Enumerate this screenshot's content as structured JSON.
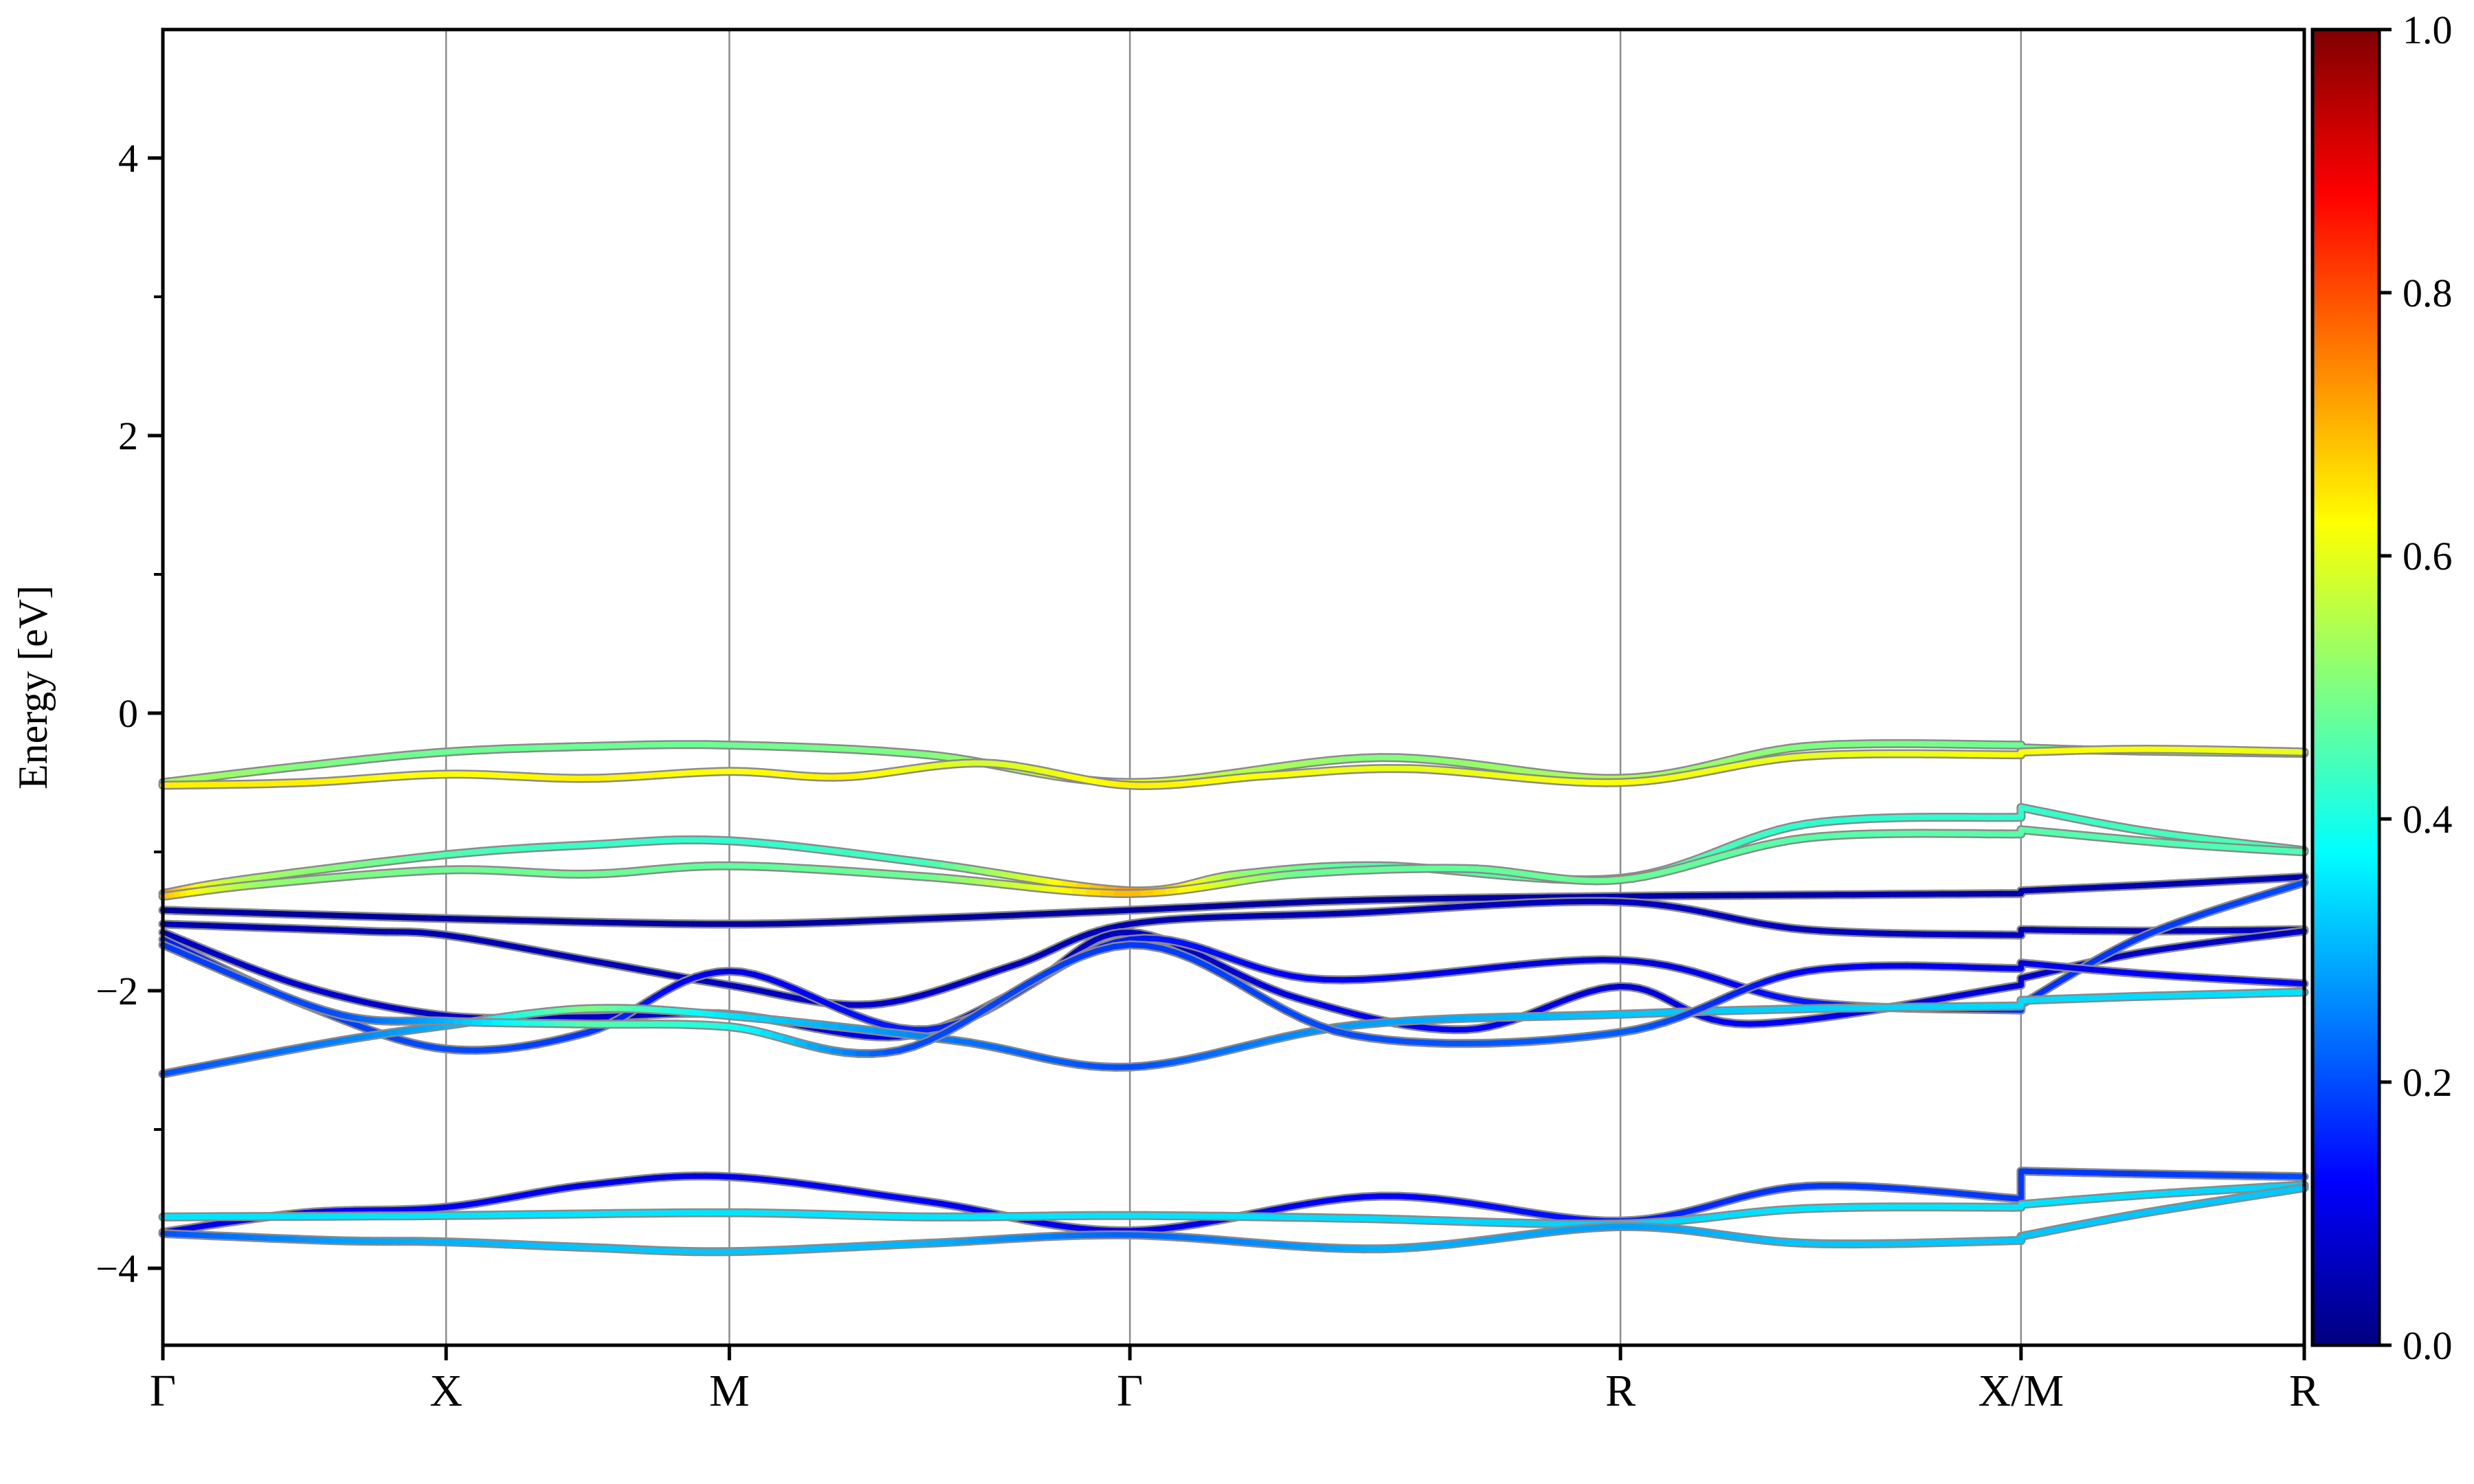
{
  "figure": {
    "background": "#ffffff",
    "gridline_color": "#8c8c8c",
    "spine_color": "#000000",
    "band_edge_color": "#8a8a8a"
  },
  "chart_data": {
    "type": "line",
    "subtype": "band-structure",
    "title": "",
    "xlabel": "",
    "ylabel": "Energy [eV]",
    "ylim": [
      -4.55,
      4.93
    ],
    "grid": "vertical-at-high-symmetry-points",
    "yticks_major": [
      {
        "label": "4",
        "value": 4
      },
      {
        "label": "2",
        "value": 2
      },
      {
        "label": "0",
        "value": 0
      },
      {
        "label": "−2",
        "value": -2
      },
      {
        "label": "−4",
        "value": -4
      }
    ],
    "yticks_minor": [
      3,
      1,
      -1,
      -3
    ],
    "xticks": [
      {
        "label": "Γ",
        "k": 0.0
      },
      {
        "label": "X",
        "k": 0.5
      },
      {
        "label": "M",
        "k": 1.0
      },
      {
        "label": "Γ",
        "k": 1.7071
      },
      {
        "label": "R",
        "k": 2.5731
      },
      {
        "label": "X/M",
        "k": 3.2802
      },
      {
        "label": "R",
        "k": 3.7802
      }
    ],
    "kmax": 3.7802,
    "colorbar": {
      "cmap": "jet",
      "range": [
        0.0,
        1.0
      ],
      "ticks": [
        {
          "label": "0.0",
          "value": 0.0
        },
        {
          "label": "0.2",
          "value": 0.2
        },
        {
          "label": "0.4",
          "value": 0.4
        },
        {
          "label": "0.6",
          "value": 0.6
        },
        {
          "label": "0.8",
          "value": 0.8
        },
        {
          "label": "1.0",
          "value": 1.0
        }
      ]
    },
    "bands": [
      {
        "name": "valence-top-upper",
        "points": [
          [
            0,
            -0.5,
            0.55
          ],
          [
            0.25,
            -0.38,
            0.5
          ],
          [
            0.5,
            -0.28,
            0.48
          ],
          [
            0.75,
            -0.24,
            0.48
          ],
          [
            1.0,
            -0.23,
            0.48
          ],
          [
            1.35,
            -0.3,
            0.5
          ],
          [
            1.7071,
            -0.5,
            0.6
          ],
          [
            2.15,
            -0.32,
            0.5
          ],
          [
            2.5731,
            -0.47,
            0.55
          ],
          [
            2.9,
            -0.24,
            0.5
          ],
          [
            3.2802,
            -0.23,
            0.48
          ],
          [
            3.2802,
            -0.25,
            0.48
          ],
          [
            3.45,
            -0.27,
            0.5
          ],
          [
            3.7802,
            -0.29,
            0.55
          ]
        ]
      },
      {
        "name": "valence-top-lower",
        "points": [
          [
            0,
            -0.52,
            0.64
          ],
          [
            0.25,
            -0.5,
            0.64
          ],
          [
            0.5,
            -0.44,
            0.62
          ],
          [
            0.75,
            -0.47,
            0.64
          ],
          [
            1.0,
            -0.42,
            0.62
          ],
          [
            1.2,
            -0.46,
            0.64
          ],
          [
            1.45,
            -0.36,
            0.58
          ],
          [
            1.7071,
            -0.52,
            0.64
          ],
          [
            1.95,
            -0.45,
            0.62
          ],
          [
            2.2,
            -0.4,
            0.6
          ],
          [
            2.5731,
            -0.5,
            0.62
          ],
          [
            2.9,
            -0.31,
            0.6
          ],
          [
            3.2802,
            -0.3,
            0.62
          ],
          [
            3.2802,
            -0.28,
            0.62
          ],
          [
            3.5,
            -0.26,
            0.62
          ],
          [
            3.7802,
            -0.28,
            0.6
          ]
        ]
      },
      {
        "name": "band-2nd-upper",
        "points": [
          [
            0,
            -1.3,
            0.74
          ],
          [
            0.14,
            -1.2,
            0.55
          ],
          [
            0.5,
            -1.02,
            0.45
          ],
          [
            0.75,
            -0.95,
            0.43
          ],
          [
            1.0,
            -0.92,
            0.42
          ],
          [
            1.35,
            -1.08,
            0.44
          ],
          [
            1.7071,
            -1.28,
            0.74
          ],
          [
            1.9,
            -1.16,
            0.52
          ],
          [
            2.15,
            -1.1,
            0.45
          ],
          [
            2.5731,
            -1.19,
            0.47
          ],
          [
            2.9,
            -0.8,
            0.42
          ],
          [
            3.2802,
            -0.75,
            0.42
          ],
          [
            3.2802,
            -0.68,
            0.42
          ],
          [
            3.5,
            -0.85,
            0.44
          ],
          [
            3.7802,
            -0.99,
            0.45
          ]
        ]
      },
      {
        "name": "band-2nd-lower",
        "points": [
          [
            0,
            -1.32,
            0.7
          ],
          [
            0.18,
            -1.23,
            0.52
          ],
          [
            0.5,
            -1.13,
            0.48
          ],
          [
            0.75,
            -1.16,
            0.48
          ],
          [
            1.0,
            -1.1,
            0.47
          ],
          [
            1.35,
            -1.18,
            0.48
          ],
          [
            1.7071,
            -1.3,
            0.7
          ],
          [
            2.0,
            -1.16,
            0.48
          ],
          [
            2.3,
            -1.12,
            0.47
          ],
          [
            2.5731,
            -1.2,
            0.48
          ],
          [
            2.9,
            -0.9,
            0.46
          ],
          [
            3.2802,
            -0.87,
            0.46
          ],
          [
            3.2802,
            -0.84,
            0.46
          ],
          [
            3.55,
            -0.94,
            0.45
          ],
          [
            3.7802,
            -1.0,
            0.45
          ]
        ]
      },
      {
        "name": "navy-flat-a",
        "points": [
          [
            0,
            -1.42,
            0.03
          ],
          [
            0.5,
            -1.48,
            0.03
          ],
          [
            1.0,
            -1.52,
            0.03
          ],
          [
            1.35,
            -1.48,
            0.03
          ],
          [
            1.7071,
            -1.42,
            0.03
          ],
          [
            2.1,
            -1.35,
            0.03
          ],
          [
            2.5731,
            -1.32,
            0.04
          ],
          [
            2.9,
            -1.31,
            0.04
          ],
          [
            3.2802,
            -1.3,
            0.04
          ],
          [
            3.2802,
            -1.28,
            0.04
          ],
          [
            3.5,
            -1.24,
            0.05
          ],
          [
            3.7802,
            -1.18,
            0.05
          ]
        ]
      },
      {
        "name": "navy-flat-b",
        "points": [
          [
            0,
            -1.52,
            0.05
          ],
          [
            0.35,
            -1.57,
            0.05
          ],
          [
            0.5,
            -1.6,
            0.05
          ],
          [
            0.75,
            -1.78,
            0.05
          ],
          [
            1.0,
            -1.96,
            0.06
          ],
          [
            1.25,
            -2.1,
            0.07
          ],
          [
            1.5,
            -1.82,
            0.06
          ],
          [
            1.7071,
            -1.52,
            0.05
          ],
          [
            2.1,
            -1.44,
            0.05
          ],
          [
            2.5731,
            -1.36,
            0.06
          ],
          [
            2.9,
            -1.56,
            0.06
          ],
          [
            3.2802,
            -1.6,
            0.06
          ],
          [
            3.2802,
            -1.56,
            0.06
          ],
          [
            3.5,
            -1.57,
            0.06
          ],
          [
            3.7802,
            -1.56,
            0.06
          ]
        ]
      },
      {
        "name": "navy-descender",
        "points": [
          [
            0,
            -1.58,
            0.06
          ],
          [
            0.25,
            -1.97,
            0.08
          ],
          [
            0.5,
            -2.18,
            0.07
          ],
          [
            0.75,
            -2.19,
            0.07
          ],
          [
            1.0,
            -2.17,
            0.07
          ],
          [
            1.3,
            -2.33,
            0.1
          ],
          [
            1.52,
            -1.98,
            0.07
          ],
          [
            1.7071,
            -1.58,
            0.06
          ],
          [
            2.0,
            -2.05,
            0.1
          ],
          [
            2.3,
            -2.28,
            0.12
          ],
          [
            2.5731,
            -1.97,
            0.08
          ],
          [
            2.8,
            -2.24,
            0.12
          ],
          [
            3.2802,
            -1.96,
            0.08
          ],
          [
            3.2802,
            -1.91,
            0.08
          ],
          [
            3.5,
            -1.72,
            0.07
          ],
          [
            3.7802,
            -1.57,
            0.06
          ]
        ]
      },
      {
        "name": "blue-descender",
        "points": [
          [
            0,
            -1.63,
            0.15
          ],
          [
            0.25,
            -2.1,
            0.18
          ],
          [
            0.5,
            -2.42,
            0.2
          ],
          [
            0.75,
            -2.3,
            0.18
          ],
          [
            1.0,
            -1.86,
            0.1
          ],
          [
            1.35,
            -2.28,
            0.16
          ],
          [
            1.7071,
            -1.63,
            0.15
          ],
          [
            2.05,
            -1.92,
            0.12
          ],
          [
            2.5731,
            -1.78,
            0.08
          ],
          [
            2.9,
            -2.08,
            0.15
          ],
          [
            3.2802,
            -2.14,
            0.17
          ],
          [
            3.2802,
            -2.1,
            0.17
          ],
          [
            3.5,
            -1.6,
            0.18
          ],
          [
            3.7802,
            -1.22,
            0.2
          ]
        ]
      },
      {
        "name": "cyan-dip-band",
        "points": [
          [
            0,
            -2.6,
            0.2
          ],
          [
            0.3,
            -2.37,
            0.25
          ],
          [
            0.5,
            -2.25,
            0.3
          ],
          [
            0.75,
            -2.13,
            0.5
          ],
          [
            1.0,
            -2.18,
            0.35
          ],
          [
            1.4,
            -2.36,
            0.24
          ],
          [
            1.7071,
            -2.55,
            0.2
          ],
          [
            2.1,
            -2.25,
            0.28
          ],
          [
            2.5731,
            -2.17,
            0.32
          ],
          [
            2.9,
            -2.13,
            0.33
          ],
          [
            3.2802,
            -2.11,
            0.34
          ],
          [
            3.2802,
            -2.07,
            0.34
          ],
          [
            3.5,
            -2.04,
            0.34
          ],
          [
            3.7802,
            -2.01,
            0.35
          ]
        ]
      },
      {
        "name": "blue-low-crosser",
        "points": [
          [
            0,
            -1.67,
            0.18
          ],
          [
            0.3,
            -2.16,
            0.2
          ],
          [
            0.5,
            -2.22,
            0.3
          ],
          [
            0.75,
            -2.24,
            0.46
          ],
          [
            1.0,
            -2.26,
            0.4
          ],
          [
            1.3,
            -2.43,
            0.2
          ],
          [
            1.7071,
            -1.67,
            0.18
          ],
          [
            2.1,
            -2.32,
            0.2
          ],
          [
            2.5731,
            -2.3,
            0.22
          ],
          [
            2.9,
            -1.86,
            0.12
          ],
          [
            3.2802,
            -1.84,
            0.1
          ],
          [
            3.2802,
            -1.8,
            0.1
          ],
          [
            3.5,
            -1.88,
            0.12
          ],
          [
            3.7802,
            -1.95,
            0.12
          ]
        ]
      },
      {
        "name": "deep-navy-arc",
        "points": [
          [
            0,
            -3.74,
            0.1
          ],
          [
            0.25,
            -3.6,
            0.12
          ],
          [
            0.5,
            -3.56,
            0.12
          ],
          [
            0.75,
            -3.4,
            0.1
          ],
          [
            1.0,
            -3.34,
            0.1
          ],
          [
            1.35,
            -3.52,
            0.12
          ],
          [
            1.7071,
            -3.73,
            0.1
          ],
          [
            2.15,
            -3.48,
            0.12
          ],
          [
            2.5731,
            -3.66,
            0.15
          ],
          [
            2.9,
            -3.41,
            0.18
          ],
          [
            3.2802,
            -3.5,
            0.18
          ],
          [
            3.2802,
            -3.3,
            0.18
          ],
          [
            3.5,
            -3.32,
            0.18
          ],
          [
            3.7802,
            -3.34,
            0.2
          ]
        ]
      },
      {
        "name": "deep-cyan-flat",
        "points": [
          [
            0,
            -3.63,
            0.35
          ],
          [
            0.5,
            -3.62,
            0.35
          ],
          [
            1.0,
            -3.6,
            0.35
          ],
          [
            1.35,
            -3.63,
            0.35
          ],
          [
            1.7071,
            -3.62,
            0.35
          ],
          [
            2.1,
            -3.64,
            0.34
          ],
          [
            2.5731,
            -3.68,
            0.33
          ],
          [
            2.9,
            -3.57,
            0.35
          ],
          [
            3.2802,
            -3.56,
            0.35
          ],
          [
            3.2802,
            -3.54,
            0.35
          ],
          [
            3.5,
            -3.47,
            0.34
          ],
          [
            3.7802,
            -3.4,
            0.33
          ]
        ]
      },
      {
        "name": "deep-cyan-arc",
        "points": [
          [
            0,
            -3.75,
            0.2
          ],
          [
            0.3,
            -3.8,
            0.28
          ],
          [
            0.5,
            -3.81,
            0.3
          ],
          [
            0.75,
            -3.85,
            0.32
          ],
          [
            1.0,
            -3.88,
            0.32
          ],
          [
            1.35,
            -3.82,
            0.3
          ],
          [
            1.7071,
            -3.76,
            0.22
          ],
          [
            2.15,
            -3.86,
            0.3
          ],
          [
            2.5731,
            -3.7,
            0.28
          ],
          [
            2.9,
            -3.82,
            0.32
          ],
          [
            3.2802,
            -3.8,
            0.32
          ],
          [
            3.2802,
            -3.77,
            0.32
          ],
          [
            3.5,
            -3.6,
            0.32
          ],
          [
            3.7802,
            -3.42,
            0.32
          ]
        ]
      }
    ]
  }
}
